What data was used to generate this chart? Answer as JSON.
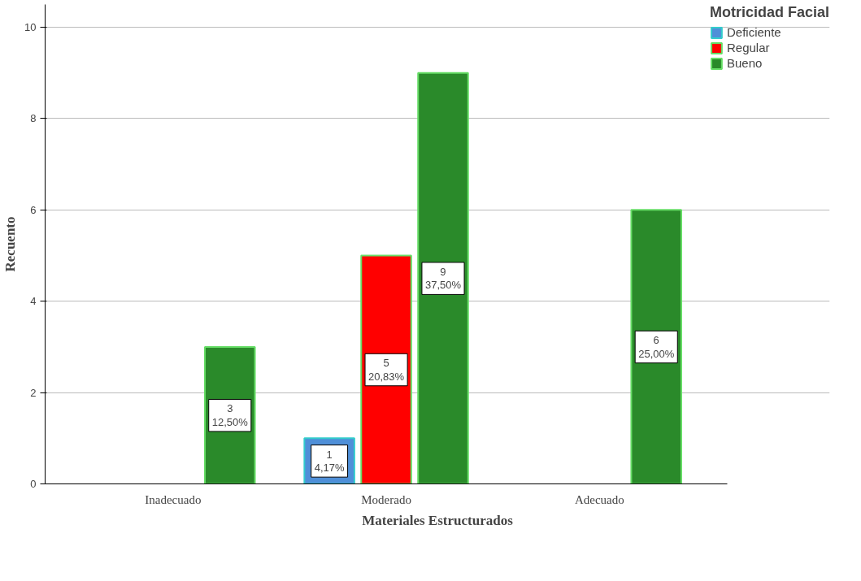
{
  "chart_data": {
    "type": "bar",
    "xlabel": "Materiales Estructurados",
    "ylabel": "Recuento",
    "legend_title": "Motricidad Facial",
    "categories": [
      "Inadecuado",
      "Moderado",
      "Adecuado"
    ],
    "series": [
      {
        "name": "Deficiente",
        "color": "#4f8fd8",
        "values": [
          null,
          1,
          null
        ],
        "value_labels": [
          null,
          "1\n4,17%",
          null
        ]
      },
      {
        "name": "Regular",
        "color": "#ff0000",
        "values": [
          null,
          5,
          null
        ],
        "value_labels": [
          null,
          "5\n20,83%",
          null
        ]
      },
      {
        "name": "Bueno",
        "color": "#2a8a2a",
        "values": [
          3,
          9,
          6
        ],
        "value_labels": [
          "3\n12,50%",
          "9\n37,50%",
          "6\n25,00%"
        ]
      }
    ],
    "ylim": [
      0,
      10.5
    ],
    "yticks": [
      0,
      2,
      4,
      6,
      8,
      10
    ],
    "grid": "y",
    "legend": "top right"
  }
}
